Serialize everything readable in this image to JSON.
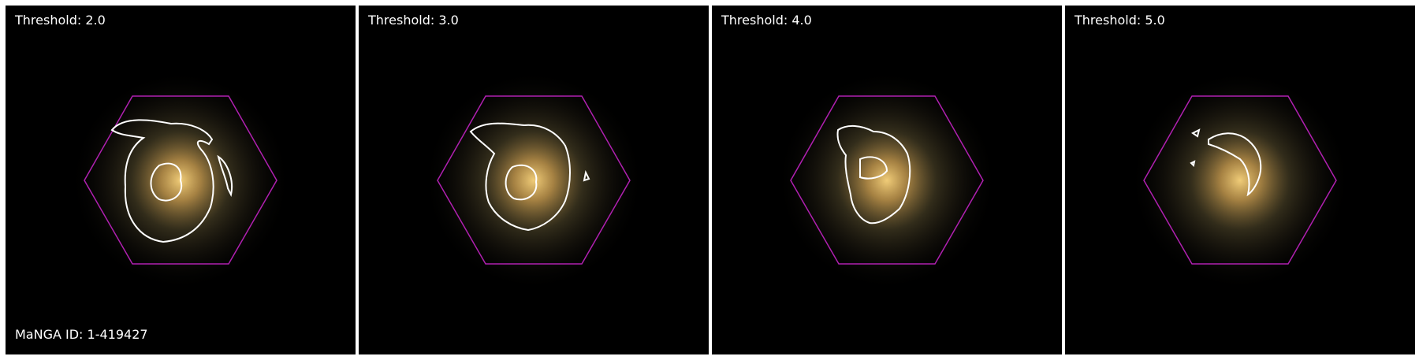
{
  "manga_id": "MaNGA ID: 1-419427",
  "colors": {
    "hexagon": "#b020b0",
    "contour": "#ffffff",
    "background": "#000000",
    "galaxy_core": "#e8c070"
  },
  "panels": [
    {
      "id": "p1",
      "threshold_label": "Threshold: 2.0",
      "show_id": true
    },
    {
      "id": "p2",
      "threshold_label": "Threshold: 3.0",
      "show_id": false
    },
    {
      "id": "p3",
      "threshold_label": "Threshold: 4.0",
      "show_id": false
    },
    {
      "id": "p4",
      "threshold_label": "Threshold: 5.0",
      "show_id": false
    }
  ]
}
